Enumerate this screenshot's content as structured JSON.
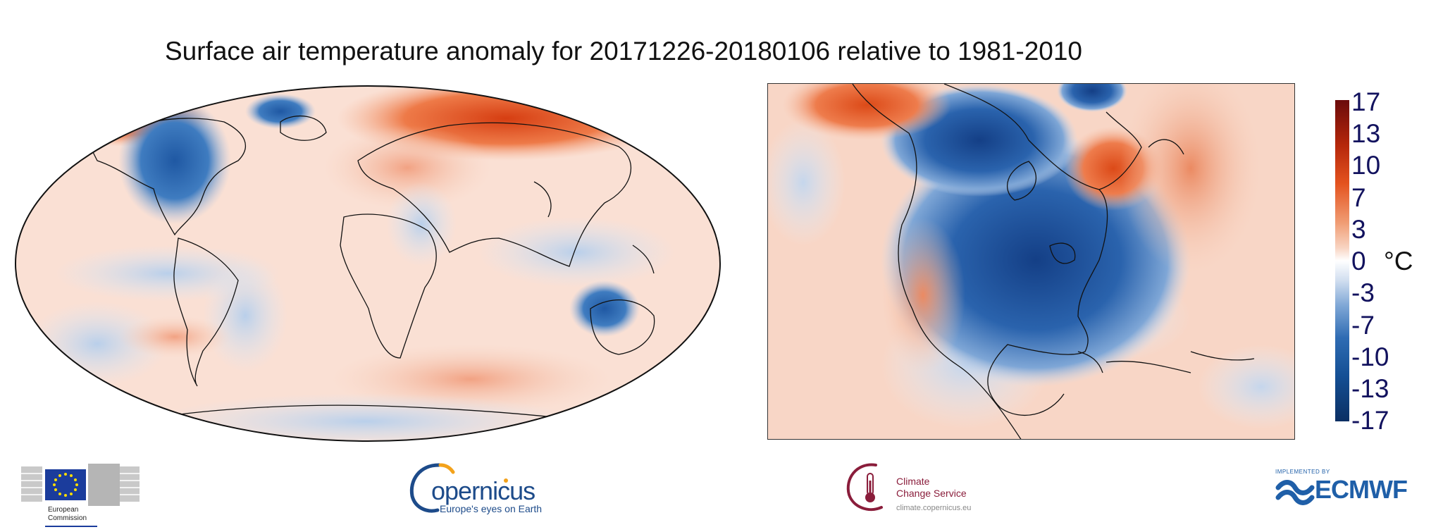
{
  "title": "Surface air temperature anomaly for 20171226-20180106 relative to 1981-2010",
  "colorbar": {
    "ticks": [
      "17",
      "13",
      "10",
      "7",
      "3",
      "0",
      "-3",
      "-7",
      "-10",
      "-13",
      "-17"
    ],
    "unit": "°C",
    "colors": [
      "#6b0b0b",
      "#e4531f",
      "#ffffff",
      "#2f6cb3",
      "#0b2f63"
    ]
  },
  "maps": [
    {
      "region": "World",
      "projection": "robinson-like ellipse"
    },
    {
      "region": "North America"
    }
  ],
  "logos": {
    "european_commission": {
      "line1": "European",
      "line2": "Commission",
      "icon": "eu-flag-icon"
    },
    "copernicus": {
      "word": "opernicus",
      "tagline": "Europe's eyes on Earth",
      "icon": "copernicus-c-icon"
    },
    "c3s": {
      "name": "Climate\nChange Service",
      "url": "climate.copernicus.eu",
      "icon": "thermometer-icon"
    },
    "ecmwf": {
      "implemented_by": "IMPLEMENTED BY",
      "word": "ECMWF",
      "icon": "ecmwf-waves-icon"
    }
  }
}
